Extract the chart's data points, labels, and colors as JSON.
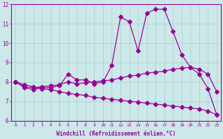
{
  "xlabel": "Windchill (Refroidissement éolien,°C)",
  "x": [
    0,
    1,
    2,
    3,
    4,
    5,
    6,
    7,
    8,
    9,
    10,
    11,
    12,
    13,
    14,
    15,
    16,
    17,
    18,
    19,
    20,
    21,
    22,
    23
  ],
  "line1": [
    8.0,
    7.7,
    7.6,
    7.7,
    7.7,
    7.8,
    8.4,
    8.1,
    8.1,
    7.9,
    8.0,
    8.85,
    11.35,
    11.1,
    9.6,
    11.55,
    11.75,
    11.75,
    10.6,
    9.4,
    8.75,
    8.4,
    7.65,
    6.3
  ],
  "line2": [
    8.0,
    7.75,
    7.7,
    7.75,
    7.8,
    7.85,
    8.0,
    7.9,
    7.95,
    8.0,
    8.05,
    8.1,
    8.2,
    8.3,
    8.35,
    8.45,
    8.5,
    8.55,
    8.65,
    8.7,
    8.75,
    8.65,
    8.4,
    7.5
  ],
  "line3": [
    8.0,
    7.85,
    7.75,
    7.65,
    7.6,
    7.5,
    7.4,
    7.35,
    7.3,
    7.2,
    7.15,
    7.1,
    7.05,
    7.0,
    6.95,
    6.9,
    6.85,
    6.8,
    6.75,
    6.7,
    6.65,
    6.6,
    6.5,
    6.3
  ],
  "color": "#990099",
  "bg_color": "#cce8e8",
  "grid_color": "#aacccc",
  "ylim": [
    6,
    12
  ],
  "xlim": [
    -0.5,
    23.5
  ],
  "yticks": [
    6,
    7,
    8,
    9,
    10,
    11,
    12
  ],
  "xticks": [
    0,
    1,
    2,
    3,
    4,
    5,
    6,
    7,
    8,
    9,
    10,
    11,
    12,
    13,
    14,
    15,
    16,
    17,
    18,
    19,
    20,
    21,
    22,
    23
  ]
}
